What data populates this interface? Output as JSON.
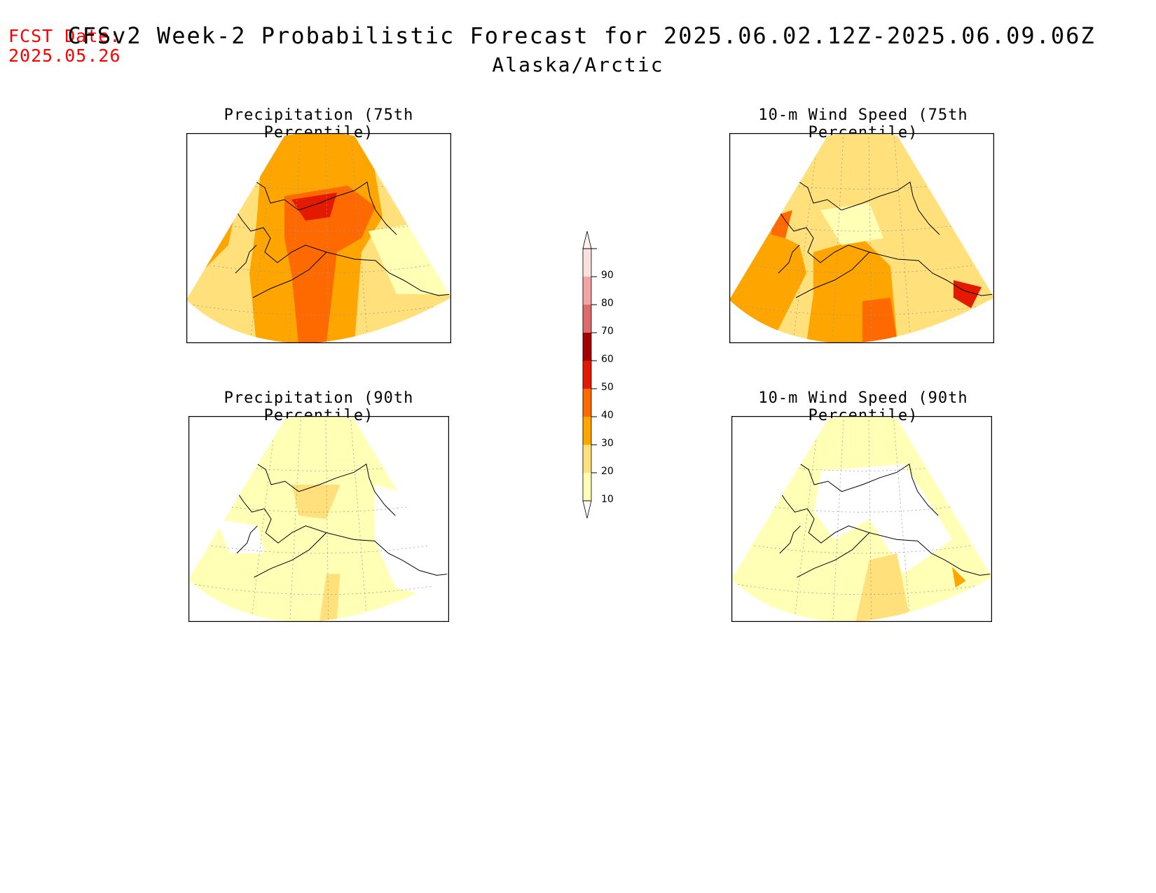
{
  "header": {
    "fcst_label": "FCST Date:",
    "fcst_date": "2025.05.26",
    "title": "CFSv2 Week-2 Probabilistic Forecast for 2025.06.02.12Z-2025.06.09.06Z",
    "region": "Alaska/Arctic"
  },
  "panels": [
    {
      "title": "Precipitation (75th Percentile)",
      "level": "high"
    },
    {
      "title": "10-m Wind Speed (75th Percentile)",
      "level": "high"
    },
    {
      "title": "Precipitation (90th Percentile)",
      "level": "low"
    },
    {
      "title": "10-m Wind Speed (90th Percentile)",
      "level": "low"
    }
  ],
  "colorbar": {
    "labels": [
      "90",
      "80",
      "70",
      "60",
      "50",
      "40",
      "30",
      "20",
      "10"
    ],
    "colors": [
      "#fbe0e0",
      "#f3a3a3",
      "#dd6b6b",
      "#a40000",
      "#e31a00",
      "#ff6a00",
      "#ffa500",
      "#ffe07a",
      "#ffffb5"
    ]
  },
  "palette": {
    "c10": "#ffffb5",
    "c20": "#ffe07a",
    "c30": "#ffa500",
    "c40": "#ff6a00",
    "c50": "#e31a00",
    "c60": "#a40000"
  }
}
